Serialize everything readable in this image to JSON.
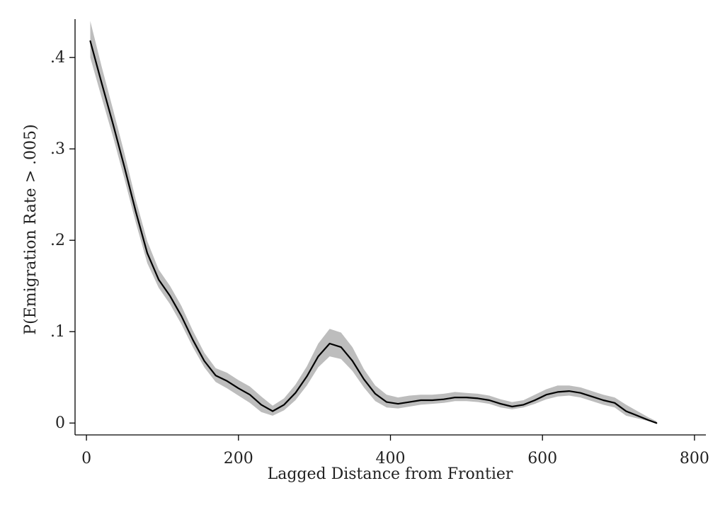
{
  "chart_data": {
    "type": "line",
    "title": "",
    "xlabel": "Lagged Distance from Frontier",
    "ylabel": "P(Emigration Rate > .005)",
    "xlim": [
      -15,
      815
    ],
    "ylim": [
      -0.013,
      0.442
    ],
    "x_ticks": [
      {
        "value": 0,
        "label": "0"
      },
      {
        "value": 200,
        "label": "200"
      },
      {
        "value": 400,
        "label": "400"
      },
      {
        "value": 600,
        "label": "600"
      },
      {
        "value": 800,
        "label": "800"
      }
    ],
    "y_ticks": [
      {
        "value": 0,
        "label": "0"
      },
      {
        "value": 0.1,
        "label": ".1"
      },
      {
        "value": 0.2,
        "label": ".2"
      },
      {
        "value": 0.3,
        "label": ".3"
      },
      {
        "value": 0.4,
        "label": ".4"
      }
    ],
    "grid": false,
    "legend": "none",
    "colors": {
      "line": "#000000",
      "band": "#bdbdbd",
      "axis": "#000000",
      "text": "#222222"
    },
    "series": [
      {
        "x": [
          5,
          20,
          35,
          50,
          65,
          80,
          95,
          110,
          125,
          140,
          155,
          170,
          185,
          200,
          215,
          230,
          245,
          260,
          275,
          290,
          305,
          320,
          335,
          350,
          365,
          380,
          395,
          410,
          425,
          440,
          455,
          470,
          485,
          500,
          515,
          530,
          545,
          560,
          575,
          590,
          605,
          620,
          635,
          650,
          665,
          680,
          695,
          710,
          725,
          740,
          750
        ],
        "y": [
          0.418,
          0.372,
          0.327,
          0.28,
          0.231,
          0.186,
          0.157,
          0.139,
          0.117,
          0.091,
          0.068,
          0.052,
          0.046,
          0.038,
          0.031,
          0.02,
          0.013,
          0.02,
          0.033,
          0.051,
          0.073,
          0.087,
          0.083,
          0.068,
          0.048,
          0.032,
          0.023,
          0.021,
          0.023,
          0.025,
          0.025,
          0.026,
          0.028,
          0.028,
          0.027,
          0.025,
          0.021,
          0.018,
          0.02,
          0.025,
          0.031,
          0.034,
          0.035,
          0.033,
          0.029,
          0.025,
          0.022,
          0.013,
          0.008,
          0.003,
          0.0
        ],
        "lower": [
          0.4,
          0.356,
          0.313,
          0.267,
          0.219,
          0.175,
          0.148,
          0.13,
          0.108,
          0.083,
          0.061,
          0.045,
          0.038,
          0.03,
          0.022,
          0.012,
          0.008,
          0.014,
          0.025,
          0.041,
          0.061,
          0.073,
          0.07,
          0.057,
          0.039,
          0.024,
          0.017,
          0.016,
          0.018,
          0.02,
          0.021,
          0.022,
          0.024,
          0.024,
          0.023,
          0.021,
          0.017,
          0.015,
          0.017,
          0.021,
          0.026,
          0.029,
          0.03,
          0.028,
          0.024,
          0.02,
          0.017,
          0.008,
          0.005,
          0.002,
          0.0
        ],
        "upper": [
          0.44,
          0.39,
          0.343,
          0.295,
          0.244,
          0.199,
          0.168,
          0.15,
          0.128,
          0.101,
          0.077,
          0.06,
          0.055,
          0.047,
          0.04,
          0.029,
          0.019,
          0.027,
          0.042,
          0.062,
          0.087,
          0.103,
          0.099,
          0.083,
          0.059,
          0.041,
          0.031,
          0.028,
          0.03,
          0.031,
          0.031,
          0.032,
          0.034,
          0.033,
          0.032,
          0.03,
          0.026,
          0.023,
          0.025,
          0.031,
          0.037,
          0.041,
          0.041,
          0.039,
          0.035,
          0.031,
          0.028,
          0.02,
          0.013,
          0.006,
          0.002
        ]
      }
    ]
  }
}
